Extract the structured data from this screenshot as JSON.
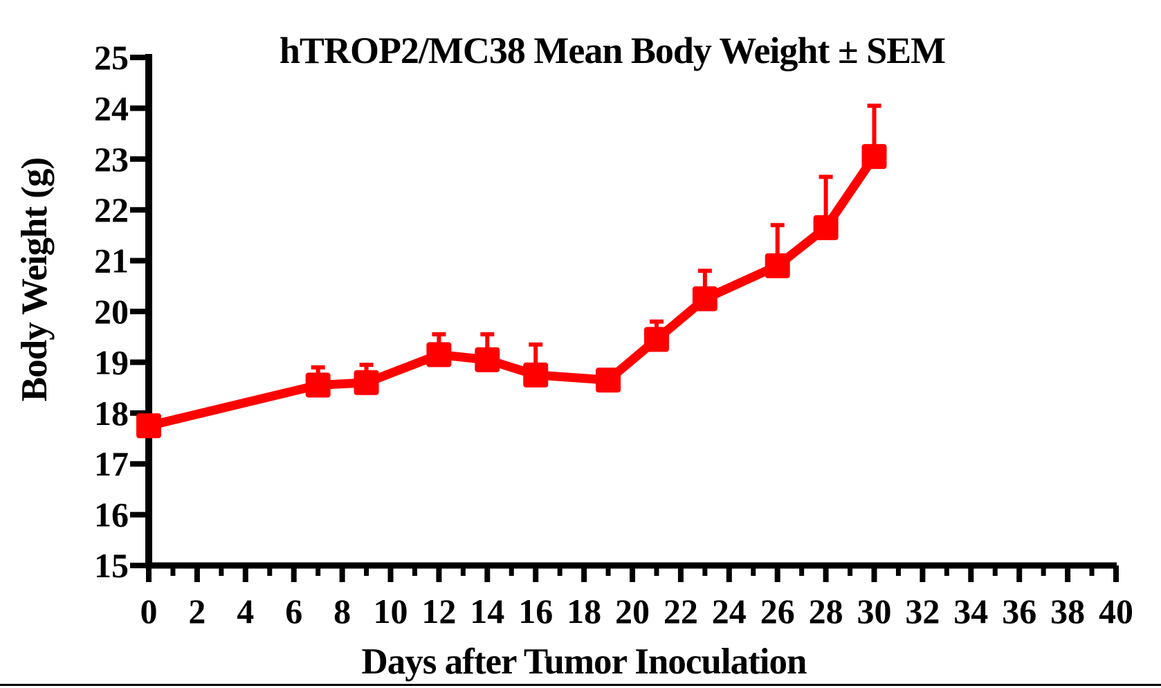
{
  "figure": {
    "title": "hTROP2/MC38 Mean Body Weight ± SEM",
    "x_axis_label": "Days after Tumor Inoculation",
    "y_axis_label": "Body Weight (g)"
  },
  "chart_data": {
    "type": "line",
    "title": "hTROP2/MC38 Mean Body Weight ± SEM",
    "xlabel": "Days after Tumor Inoculation",
    "ylabel": "Body Weight (g)",
    "xlim": [
      0,
      40
    ],
    "ylim": [
      15,
      25
    ],
    "x_major_ticks": [
      0,
      2,
      4,
      6,
      8,
      10,
      12,
      14,
      16,
      18,
      20,
      22,
      24,
      26,
      28,
      30,
      32,
      34,
      36,
      38,
      40
    ],
    "x_minor_ticks": [
      1,
      3,
      5,
      7,
      9,
      11,
      13,
      15,
      17,
      19,
      21,
      23,
      25,
      27,
      29,
      31,
      33,
      35,
      37,
      39
    ],
    "y_ticks": [
      15,
      16,
      17,
      18,
      19,
      20,
      21,
      22,
      23,
      24,
      25
    ],
    "grid": false,
    "legend": "none",
    "series": [
      {
        "name": "hTROP2/MC38 mean body weight",
        "marker": "square",
        "error_bars": "upper SEM only",
        "x": [
          0,
          7,
          9,
          12,
          14,
          16,
          19,
          21,
          23,
          26,
          28,
          30
        ],
        "y": [
          17.75,
          18.55,
          18.6,
          19.15,
          19.05,
          18.75,
          18.65,
          19.45,
          20.25,
          20.9,
          21.65,
          23.05
        ],
        "sem_upper": [
          0,
          0.35,
          0.35,
          0.4,
          0.5,
          0.6,
          0,
          0.35,
          0.55,
          0.8,
          1.0,
          1.0
        ]
      }
    ]
  },
  "colors": {
    "series_red": "#ff0000",
    "axis_black": "#000000",
    "background": "#ffffff"
  }
}
